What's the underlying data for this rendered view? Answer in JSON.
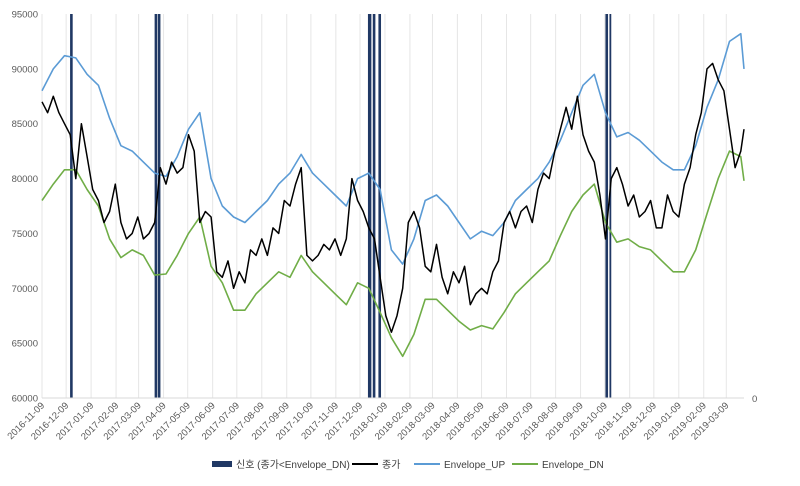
{
  "chart_data": {
    "type": "line",
    "yaxis_left": {
      "min": 60000,
      "max": 95000,
      "step": 5000,
      "ticks": [
        "60000",
        "65000",
        "70000",
        "75000",
        "80000",
        "85000",
        "90000",
        "95000"
      ]
    },
    "yaxis_right": {
      "ticks": [
        "0"
      ]
    },
    "xaxis": {
      "ticks": [
        "2016-11-09",
        "2016-12-09",
        "2017-01-09",
        "2017-02-09",
        "2017-03-09",
        "2017-04-09",
        "2017-05-09",
        "2017-06-09",
        "2017-07-09",
        "2017-08-09",
        "2017-09-09",
        "2017-10-09",
        "2017-11-09",
        "2017-12-09",
        "2018-01-09",
        "2018-02-09",
        "2018-03-09",
        "2018-04-09",
        "2018-05-09",
        "2018-06-09",
        "2018-07-09",
        "2018-08-09",
        "2018-09-09",
        "2018-10-09",
        "2018-11-09",
        "2018-12-09",
        "2019-01-09",
        "2019-02-09",
        "2019-03-09"
      ],
      "start": "2016-11-09",
      "end": "2019-03-31"
    },
    "grid": "vertical",
    "legend_position": "bottom",
    "colors": {
      "signal": "#203864",
      "close": "#000000",
      "upper": "#5b9bd5",
      "lower": "#70ad47"
    },
    "series": [
      {
        "name": "신호 (종가<Envelope_DN)",
        "kind": "signal-bars",
        "x": [
          "2016-12-15",
          "2016-12-16",
          "2017-03-30",
          "2017-03-31",
          "2017-04-03",
          "2017-04-04",
          "2017-12-20",
          "2017-12-21",
          "2017-12-22",
          "2017-12-26",
          "2017-12-27",
          "2018-01-02",
          "2018-01-03",
          "2018-10-11",
          "2018-10-12",
          "2018-10-16"
        ]
      },
      {
        "name": "종가",
        "x": [
          "2016-11-09",
          "2016-11-16",
          "2016-11-23",
          "2016-11-30",
          "2016-12-07",
          "2016-12-14",
          "2016-12-21",
          "2016-12-28",
          "2017-01-04",
          "2017-01-11",
          "2017-01-18",
          "2017-01-25",
          "2017-02-01",
          "2017-02-08",
          "2017-02-15",
          "2017-02-22",
          "2017-03-01",
          "2017-03-08",
          "2017-03-15",
          "2017-03-22",
          "2017-03-29",
          "2017-04-05",
          "2017-04-12",
          "2017-04-19",
          "2017-04-26",
          "2017-05-03",
          "2017-05-10",
          "2017-05-17",
          "2017-05-24",
          "2017-05-31",
          "2017-06-07",
          "2017-06-14",
          "2017-06-21",
          "2017-06-28",
          "2017-07-05",
          "2017-07-12",
          "2017-07-19",
          "2017-07-26",
          "2017-08-02",
          "2017-08-09",
          "2017-08-16",
          "2017-08-23",
          "2017-08-30",
          "2017-09-06",
          "2017-09-13",
          "2017-09-20",
          "2017-09-27",
          "2017-10-04",
          "2017-10-11",
          "2017-10-18",
          "2017-10-25",
          "2017-11-01",
          "2017-11-08",
          "2017-11-15",
          "2017-11-22",
          "2017-11-29",
          "2017-12-06",
          "2017-12-13",
          "2017-12-20",
          "2017-12-27",
          "2018-01-03",
          "2018-01-10",
          "2018-01-17",
          "2018-01-24",
          "2018-01-31",
          "2018-02-07",
          "2018-02-14",
          "2018-02-21",
          "2018-02-28",
          "2018-03-07",
          "2018-03-14",
          "2018-03-21",
          "2018-03-28",
          "2018-04-04",
          "2018-04-11",
          "2018-04-18",
          "2018-04-25",
          "2018-05-02",
          "2018-05-09",
          "2018-05-16",
          "2018-05-23",
          "2018-05-30",
          "2018-06-06",
          "2018-06-13",
          "2018-06-20",
          "2018-06-27",
          "2018-07-04",
          "2018-07-11",
          "2018-07-18",
          "2018-07-25",
          "2018-08-01",
          "2018-08-08",
          "2018-08-15",
          "2018-08-22",
          "2018-08-29",
          "2018-09-05",
          "2018-09-12",
          "2018-09-19",
          "2018-09-26",
          "2018-10-03",
          "2018-10-10",
          "2018-10-17",
          "2018-10-24",
          "2018-10-31",
          "2018-11-07",
          "2018-11-14",
          "2018-11-21",
          "2018-11-28",
          "2018-12-05",
          "2018-12-12",
          "2018-12-19",
          "2018-12-26",
          "2019-01-02",
          "2019-01-09",
          "2019-01-16",
          "2019-01-23",
          "2019-01-30",
          "2019-02-06",
          "2019-02-13",
          "2019-02-20",
          "2019-02-27",
          "2019-03-06",
          "2019-03-13",
          "2019-03-20",
          "2019-03-27",
          "2019-03-31"
        ],
        "values": [
          87000,
          86000,
          87500,
          86000,
          85000,
          84000,
          80000,
          85000,
          82000,
          79000,
          78000,
          76000,
          77000,
          79500,
          76000,
          74500,
          75000,
          76500,
          74500,
          75000,
          76000,
          81000,
          79500,
          81500,
          80500,
          81000,
          84000,
          82500,
          76000,
          77000,
          76500,
          71500,
          71000,
          72500,
          70000,
          71500,
          70500,
          73500,
          73000,
          74500,
          73000,
          75500,
          75000,
          78000,
          77500,
          79500,
          81000,
          73000,
          72500,
          73000,
          74000,
          73500,
          74500,
          73000,
          74500,
          80000,
          78000,
          77000,
          75500,
          74500,
          71000,
          67500,
          66000,
          67500,
          70000,
          76000,
          77000,
          75500,
          72000,
          71500,
          74000,
          71000,
          69500,
          71500,
          70500,
          72000,
          68500,
          69500,
          70000,
          69500,
          71500,
          72500,
          76000,
          77000,
          75500,
          77000,
          77500,
          76000,
          79000,
          80500,
          80000,
          82500,
          84500,
          86500,
          84500,
          87500,
          84000,
          82500,
          81500,
          78500,
          74500,
          80000,
          81000,
          79500,
          77500,
          78500,
          76500,
          77000,
          78000,
          75500,
          75500,
          78500,
          77000,
          76500,
          79500,
          81000,
          84000,
          86000,
          90000,
          90500,
          89000,
          88000,
          84500,
          81000,
          82500,
          84500
        ]
      },
      {
        "name": "Envelope_UP",
        "x": [
          "2016-11-09",
          "2016-11-23",
          "2016-12-07",
          "2016-12-21",
          "2017-01-04",
          "2017-01-18",
          "2017-02-01",
          "2017-02-15",
          "2017-03-01",
          "2017-03-15",
          "2017-03-29",
          "2017-04-12",
          "2017-04-26",
          "2017-05-10",
          "2017-05-24",
          "2017-06-07",
          "2017-06-21",
          "2017-07-05",
          "2017-07-19",
          "2017-08-02",
          "2017-08-16",
          "2017-08-30",
          "2017-09-13",
          "2017-09-27",
          "2017-10-11",
          "2017-10-25",
          "2017-11-08",
          "2017-11-22",
          "2017-12-06",
          "2017-12-20",
          "2018-01-03",
          "2018-01-17",
          "2018-01-31",
          "2018-02-14",
          "2018-02-28",
          "2018-03-14",
          "2018-03-28",
          "2018-04-11",
          "2018-04-25",
          "2018-05-09",
          "2018-05-23",
          "2018-06-06",
          "2018-06-20",
          "2018-07-04",
          "2018-07-18",
          "2018-08-01",
          "2018-08-15",
          "2018-08-29",
          "2018-09-12",
          "2018-09-26",
          "2018-10-10",
          "2018-10-24",
          "2018-11-07",
          "2018-11-21",
          "2018-12-05",
          "2018-12-19",
          "2019-01-02",
          "2019-01-16",
          "2019-01-30",
          "2019-02-13",
          "2019-02-27",
          "2019-03-13",
          "2019-03-27",
          "2019-03-31"
        ],
        "values": [
          88000,
          90000,
          91200,
          91000,
          89500,
          88500,
          85500,
          83000,
          82500,
          81500,
          80500,
          80200,
          82000,
          84500,
          86000,
          80000,
          77500,
          76500,
          76000,
          77000,
          78000,
          79500,
          80500,
          82200,
          80500,
          79500,
          78500,
          77500,
          80000,
          80500,
          79000,
          73500,
          72200,
          74500,
          78000,
          78500,
          77500,
          76000,
          74500,
          75200,
          74800,
          76000,
          78000,
          79000,
          80000,
          81500,
          83500,
          86000,
          88500,
          89500,
          86000,
          83800,
          84200,
          83500,
          82500,
          81500,
          80800,
          80800,
          83000,
          86500,
          89000,
          92500,
          93200,
          90000
        ]
      },
      {
        "name": "Envelope_DN",
        "x": [
          "2016-11-09",
          "2016-11-23",
          "2016-12-07",
          "2016-12-21",
          "2017-01-04",
          "2017-01-18",
          "2017-02-01",
          "2017-02-15",
          "2017-03-01",
          "2017-03-15",
          "2017-03-29",
          "2017-04-12",
          "2017-04-26",
          "2017-05-10",
          "2017-05-24",
          "2017-06-07",
          "2017-06-21",
          "2017-07-05",
          "2017-07-19",
          "2017-08-02",
          "2017-08-16",
          "2017-08-30",
          "2017-09-13",
          "2017-09-27",
          "2017-10-11",
          "2017-10-25",
          "2017-11-08",
          "2017-11-22",
          "2017-12-06",
          "2017-12-20",
          "2018-01-03",
          "2018-01-17",
          "2018-01-31",
          "2018-02-14",
          "2018-02-28",
          "2018-03-14",
          "2018-03-28",
          "2018-04-11",
          "2018-04-25",
          "2018-05-09",
          "2018-05-23",
          "2018-06-06",
          "2018-06-20",
          "2018-07-04",
          "2018-07-18",
          "2018-08-01",
          "2018-08-15",
          "2018-08-29",
          "2018-09-12",
          "2018-09-26",
          "2018-10-10",
          "2018-10-24",
          "2018-11-07",
          "2018-11-21",
          "2018-12-05",
          "2018-12-19",
          "2019-01-02",
          "2019-01-16",
          "2019-01-30",
          "2019-02-13",
          "2019-02-27",
          "2019-03-13",
          "2019-03-27",
          "2019-03-31"
        ],
        "values": [
          78000,
          79500,
          80800,
          80800,
          79000,
          77500,
          74500,
          72800,
          73500,
          73000,
          71200,
          71300,
          73000,
          75000,
          76500,
          72000,
          70500,
          68000,
          68000,
          69500,
          70500,
          71500,
          71000,
          73000,
          71500,
          70500,
          69500,
          68500,
          70500,
          70000,
          67800,
          65500,
          63800,
          65800,
          69000,
          69000,
          68000,
          67000,
          66200,
          66600,
          66300,
          67800,
          69500,
          70500,
          71500,
          72500,
          74800,
          77000,
          78500,
          79500,
          76000,
          74200,
          74500,
          73800,
          73500,
          72500,
          71500,
          71500,
          73500,
          76800,
          80000,
          82500,
          82000,
          79800
        ]
      }
    ]
  }
}
